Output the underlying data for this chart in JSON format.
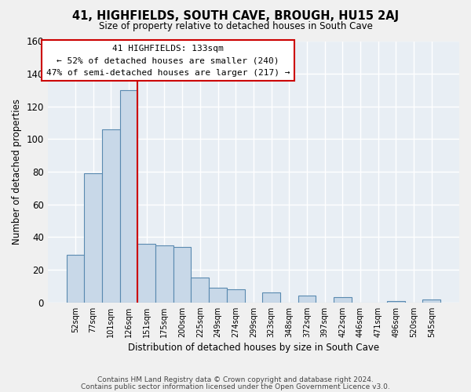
{
  "title": "41, HIGHFIELDS, SOUTH CAVE, BROUGH, HU15 2AJ",
  "subtitle": "Size of property relative to detached houses in South Cave",
  "xlabel": "Distribution of detached houses by size in South Cave",
  "ylabel": "Number of detached properties",
  "bar_color": "#c8d8e8",
  "bar_edge_color": "#5a8ab0",
  "bar_values": [
    29,
    79,
    106,
    130,
    36,
    35,
    34,
    15,
    9,
    8,
    0,
    6,
    0,
    4,
    0,
    3,
    0,
    0,
    1,
    0,
    2
  ],
  "bin_labels": [
    "52sqm",
    "77sqm",
    "101sqm",
    "126sqm",
    "151sqm",
    "175sqm",
    "200sqm",
    "225sqm",
    "249sqm",
    "274sqm",
    "299sqm",
    "323sqm",
    "348sqm",
    "372sqm",
    "397sqm",
    "422sqm",
    "446sqm",
    "471sqm",
    "496sqm",
    "520sqm",
    "545sqm"
  ],
  "ylim": [
    0,
    160
  ],
  "yticks": [
    0,
    20,
    40,
    60,
    80,
    100,
    120,
    140,
    160
  ],
  "vline_x_index": 3,
  "vline_color": "#cc0000",
  "annotation_title": "41 HIGHFIELDS: 133sqm",
  "annotation_line1": "← 52% of detached houses are smaller (240)",
  "annotation_line2": "47% of semi-detached houses are larger (217) →",
  "annotation_box_color": "#ffffff",
  "annotation_box_edge": "#cc0000",
  "footer1": "Contains HM Land Registry data © Crown copyright and database right 2024.",
  "footer2": "Contains public sector information licensed under the Open Government Licence v3.0.",
  "background_color": "#f0f0f0",
  "plot_bg_color": "#e8eef4",
  "grid_color": "#ffffff"
}
